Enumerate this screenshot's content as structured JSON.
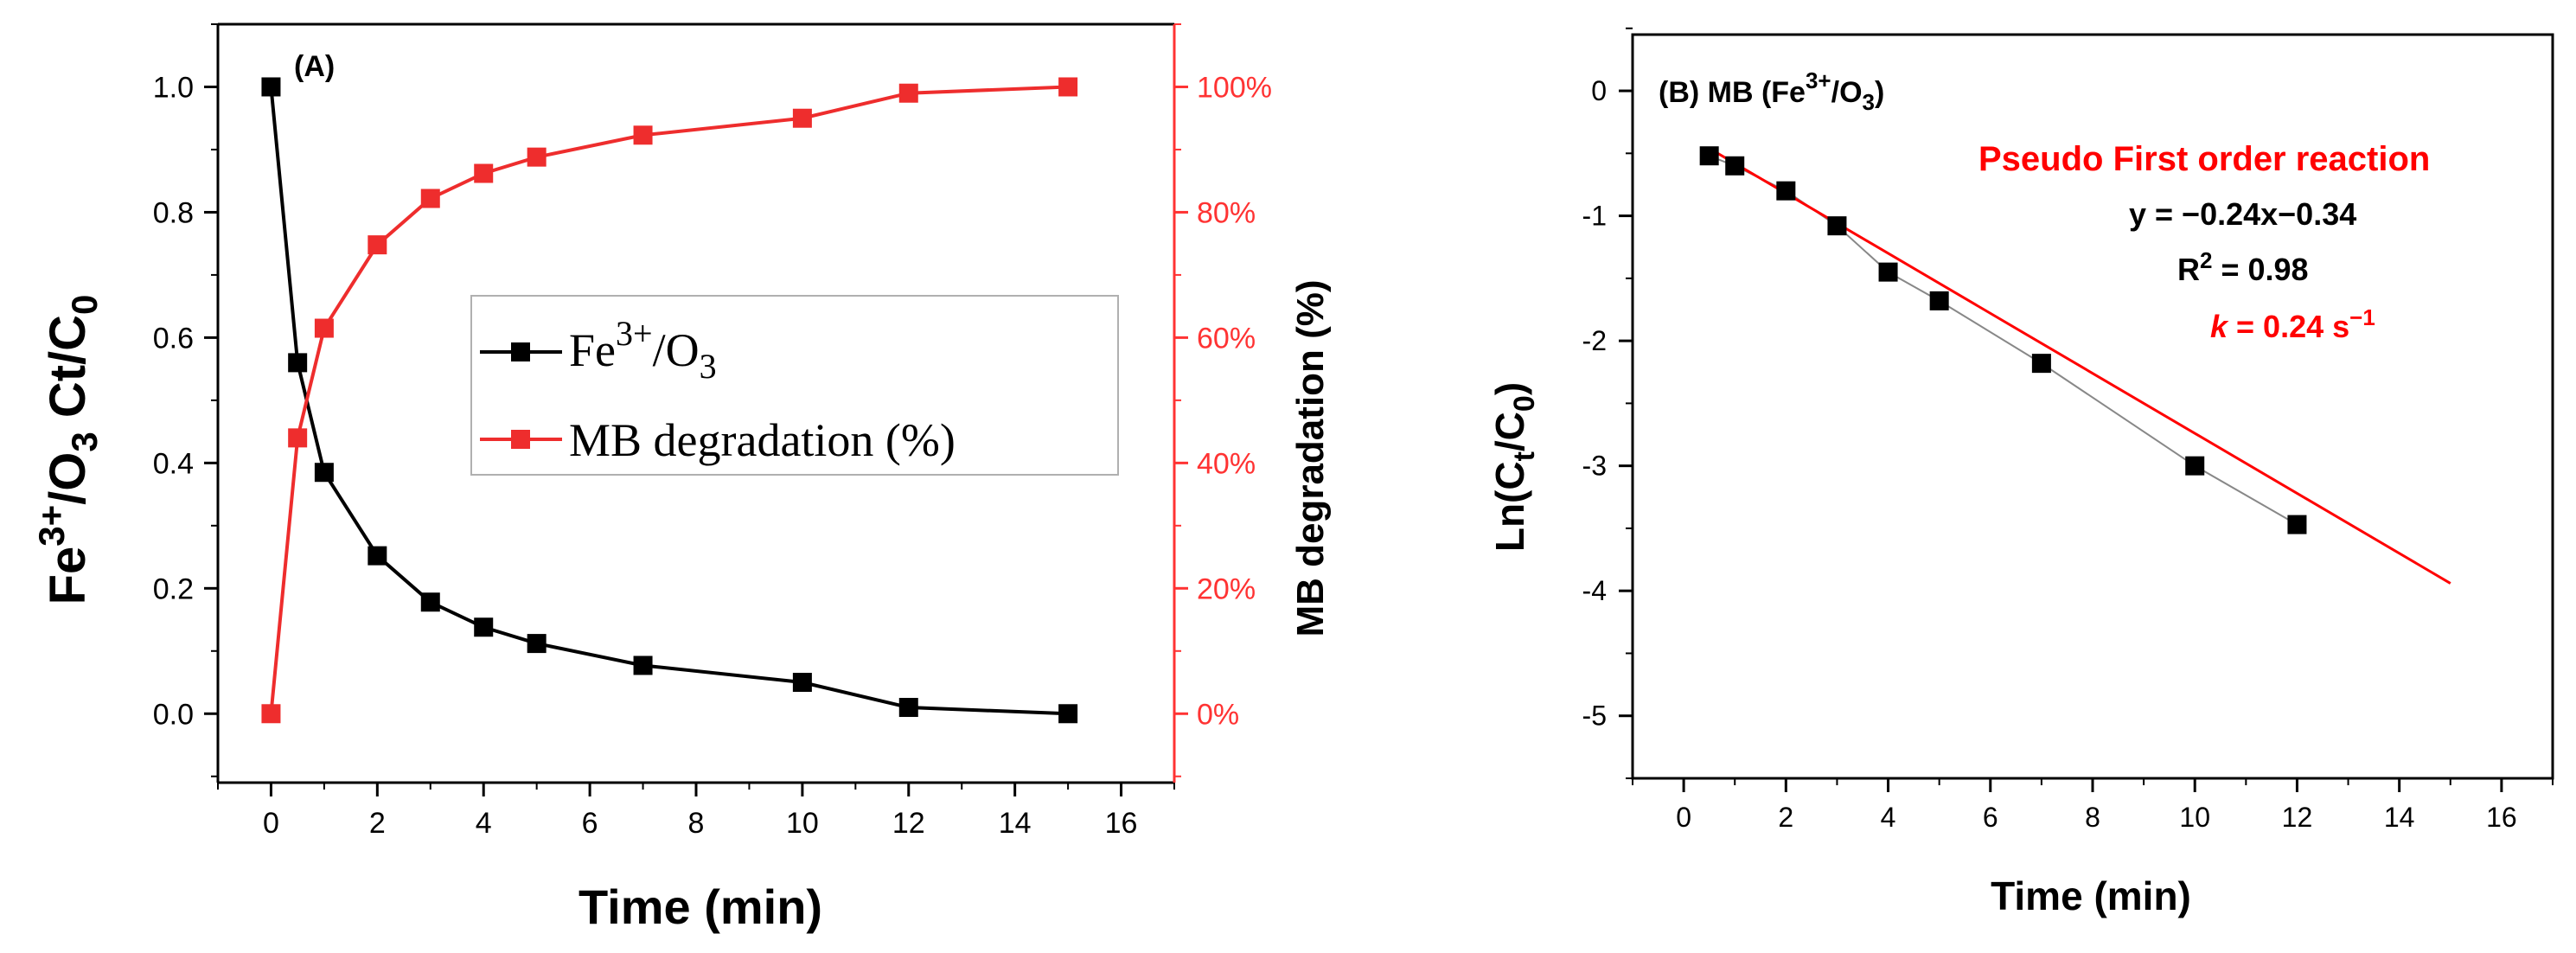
{
  "colors": {
    "black": "#000000",
    "red": "#ee2d2d",
    "fitRed": "#ff0000",
    "axisRed": "#ff3333"
  },
  "chart_data": [
    {
      "type": "line",
      "panel_label": "(A)",
      "xlabel": "Time (min)",
      "y1label": {
        "main": "Fe",
        "sup": "3+",
        "mid": "/O",
        "sub3": "3",
        "tail": " Ct/C",
        "sub0": "0"
      },
      "y2label": "MB degradation (%)",
      "xlim": [
        -1,
        17
      ],
      "ylim": [
        -0.11,
        1.1
      ],
      "y2lim": [
        -11,
        110
      ],
      "xticks": [
        0,
        2,
        4,
        6,
        8,
        10,
        12,
        14,
        16
      ],
      "xtick_labels": [
        "0",
        "2",
        "4",
        "6",
        "8",
        "10",
        "12",
        "14",
        "16"
      ],
      "yticks": [
        0,
        0.2,
        0.4,
        0.6,
        0.8,
        1.0
      ],
      "ytick_labels": [
        "0.0",
        "0.2",
        "0.4",
        "0.6",
        "0.8",
        "1.0"
      ],
      "y2ticks": [
        0,
        20,
        40,
        60,
        80,
        100
      ],
      "y2tick_labels": [
        "0%",
        "20%",
        "40%",
        "60%",
        "80%",
        "100%"
      ],
      "legend": {
        "position": "center",
        "entries": [
          {
            "name_main": "Fe",
            "name_sup": "3+",
            "name_mid": "/O",
            "name_sub": "3",
            "color": "#000000"
          },
          {
            "name_main": "MB degradation (%)",
            "name_sup": "",
            "name_mid": "",
            "name_sub": "",
            "color": "#ee2d2d"
          }
        ]
      },
      "series": [
        {
          "name": "Fe3+/O3 Ct/C0",
          "axis": "left",
          "color": "#000000",
          "x": [
            0,
            0.5,
            1,
            2,
            3,
            4,
            5,
            7,
            10,
            12,
            15
          ],
          "y": [
            1.0,
            0.56,
            0.385,
            0.252,
            0.178,
            0.138,
            0.112,
            0.077,
            0.05,
            0.01,
            0.0
          ]
        },
        {
          "name": "MB degradation (%)",
          "axis": "right",
          "color": "#ee2d2d",
          "x": [
            0,
            0.5,
            1,
            2,
            3,
            4,
            5,
            7,
            10,
            12,
            15
          ],
          "y": [
            0,
            44,
            61.5,
            74.8,
            82.2,
            86.2,
            88.8,
            92.3,
            95,
            99,
            100
          ]
        }
      ]
    },
    {
      "type": "scatter",
      "panel_label": {
        "prefix": "(B) MB (Fe",
        "sup": "3+",
        "mid": "/O",
        "sub": "3",
        "suffix": ")"
      },
      "xlabel": "Time (min)",
      "ylabel": {
        "prefix": "Ln(C",
        "sub_t": "t",
        "mid": "/C",
        "sub_0": "0",
        "suffix": ")"
      },
      "xlim": [
        -1,
        17
      ],
      "ylim": [
        -5.5,
        0.45
      ],
      "xticks": [
        0,
        2,
        4,
        6,
        8,
        10,
        12,
        14,
        16
      ],
      "xtick_labels": [
        "0",
        "2",
        "4",
        "6",
        "8",
        "10",
        "12",
        "14",
        "16"
      ],
      "yticks": [
        0,
        -1,
        -2,
        -3,
        -4,
        -5
      ],
      "ytick_labels": [
        "0",
        "-1",
        "-2",
        "-3",
        "-4",
        "-5"
      ],
      "series": [
        {
          "name": "Ln(Ct/C0)",
          "color": "#000000",
          "x": [
            0.5,
            1,
            2,
            3,
            4,
            5,
            7,
            10,
            12
          ],
          "y": [
            -0.52,
            -0.6,
            -0.8,
            -1.08,
            -1.45,
            -1.68,
            -2.18,
            -3.0,
            -3.47
          ]
        }
      ],
      "fit": {
        "slope": -0.24,
        "intercept": -0.34,
        "x_range": [
          0.5,
          15
        ],
        "color": "#ff0000"
      },
      "annotations": {
        "title": "Pseudo First order reaction",
        "equation": "y = −0.24x−0.34",
        "r2_prefix": "R",
        "r2_sup": "2",
        "r2_value": " = 0.98",
        "k_symbol": "k",
        "k_value": " = 0.24 s",
        "k_sup": "−1"
      }
    }
  ]
}
